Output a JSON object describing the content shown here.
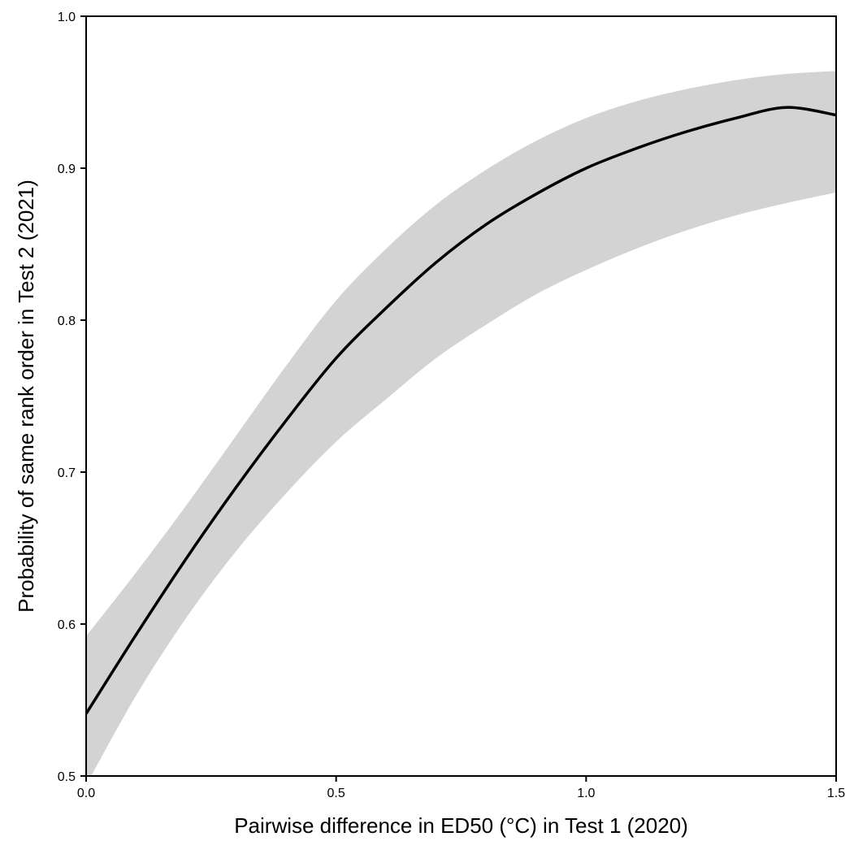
{
  "chart_data": {
    "type": "line",
    "title": "",
    "xlabel": "Pairwise difference in ED50 (°C) in Test 1 (2020)",
    "ylabel": "Probability of same rank order in Test 2 (2021)",
    "xlim": [
      0.0,
      1.5
    ],
    "ylim": [
      0.5,
      1.0
    ],
    "x_ticks": [
      0.0,
      0.5,
      1.0,
      1.5
    ],
    "x_tick_labels": [
      "0.0",
      "0.5",
      "1.0",
      "1.5"
    ],
    "y_ticks": [
      0.5,
      0.6,
      0.7,
      0.8,
      0.9,
      1.0
    ],
    "y_tick_labels": [
      "0.5",
      "0.6",
      "0.7",
      "0.8",
      "0.9",
      "1.0"
    ],
    "grid": false,
    "legend": "none",
    "colors": {
      "line": "#000000",
      "band": "#d3d3d3",
      "axis": "#000000"
    },
    "series": [
      {
        "x": [
          0.0,
          0.1,
          0.2,
          0.3,
          0.4,
          0.5,
          0.6,
          0.7,
          0.8,
          0.9,
          1.0,
          1.1,
          1.2,
          1.3,
          1.4,
          1.5
        ],
        "y": [
          0.541,
          0.593,
          0.643,
          0.69,
          0.734,
          0.775,
          0.808,
          0.838,
          0.863,
          0.883,
          0.9,
          0.913,
          0.924,
          0.933,
          0.94,
          0.935
        ],
        "lower": [
          0.494,
          0.553,
          0.604,
          0.648,
          0.686,
          0.72,
          0.748,
          0.775,
          0.797,
          0.817,
          0.833,
          0.847,
          0.859,
          0.869,
          0.877,
          0.884
        ],
        "upper": [
          0.592,
          0.634,
          0.678,
          0.724,
          0.77,
          0.813,
          0.847,
          0.876,
          0.899,
          0.918,
          0.933,
          0.944,
          0.952,
          0.958,
          0.962,
          0.964
        ]
      }
    ]
  }
}
